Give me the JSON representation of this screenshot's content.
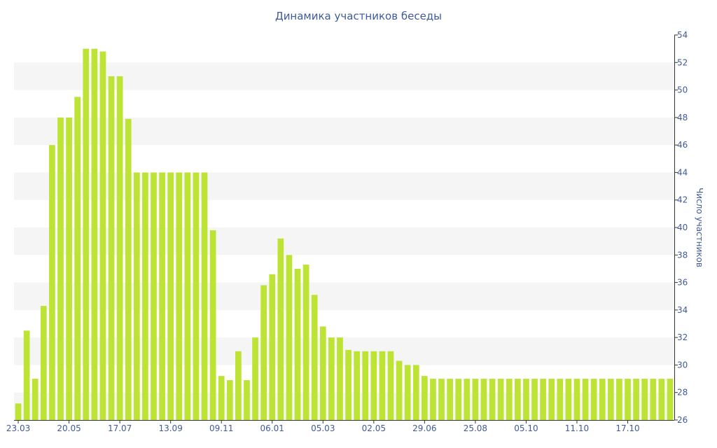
{
  "chart_data": {
    "type": "bar",
    "title": "Динамика участников беседы",
    "xlabel": "",
    "ylabel": "Число участников",
    "ylim": [
      26,
      54
    ],
    "y_axis_side": "right",
    "y_ticks": [
      26,
      28,
      30,
      32,
      34,
      36,
      38,
      40,
      42,
      44,
      46,
      48,
      50,
      52,
      54
    ],
    "x_tick_labels": [
      {
        "index": 0,
        "label": "23.03"
      },
      {
        "index": 6,
        "label": "20.05"
      },
      {
        "index": 12,
        "label": "17.07"
      },
      {
        "index": 18,
        "label": "13.09"
      },
      {
        "index": 24,
        "label": "09.11"
      },
      {
        "index": 30,
        "label": "06.01"
      },
      {
        "index": 36,
        "label": "05.03"
      },
      {
        "index": 42,
        "label": "02.05"
      },
      {
        "index": 48,
        "label": "29.06"
      },
      {
        "index": 54,
        "label": "25.08"
      },
      {
        "index": 60,
        "label": "05.10"
      },
      {
        "index": 66,
        "label": "11.10"
      },
      {
        "index": 72,
        "label": "17.10"
      }
    ],
    "grid": "alternating horizontal bands",
    "colors": {
      "bar": "#bde334",
      "band": "#f5f5f5",
      "text": "#3f5a9a",
      "axis": "#333333"
    },
    "values": [
      27.2,
      32.5,
      29,
      34.3,
      46,
      48,
      48,
      49.5,
      53,
      53,
      52.8,
      51,
      51,
      47.9,
      44,
      44,
      44,
      44,
      44,
      44,
      44,
      44,
      44,
      39.8,
      29.2,
      28.9,
      31,
      28.9,
      32,
      35.8,
      36.6,
      39.2,
      38,
      37,
      37.3,
      35.1,
      32.8,
      32,
      32,
      31.1,
      31,
      31,
      31,
      31,
      31,
      30.3,
      30,
      30,
      29.2,
      29,
      29,
      29,
      29,
      29,
      29,
      29,
      29,
      29,
      29,
      29,
      29,
      29,
      29,
      29,
      29,
      29,
      29,
      29,
      29,
      29,
      29,
      29,
      29,
      29,
      29,
      29,
      29,
      29
    ]
  }
}
